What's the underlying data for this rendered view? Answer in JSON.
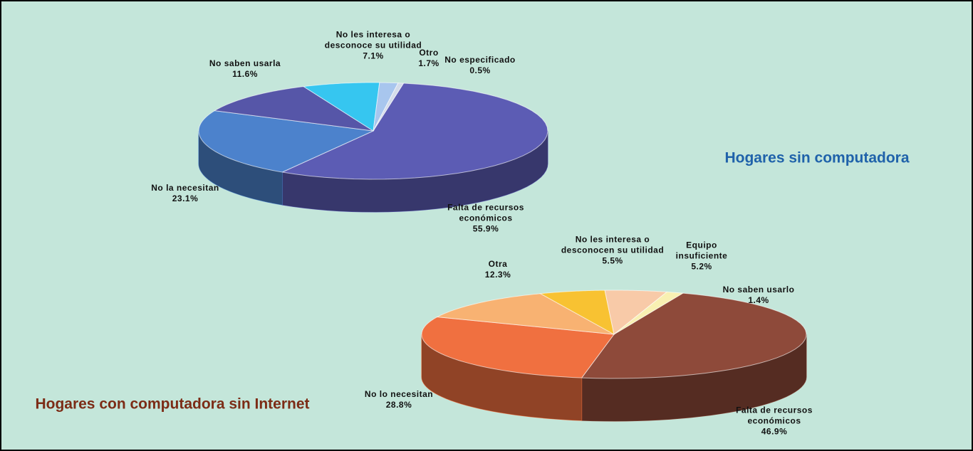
{
  "chart_data": [
    {
      "type": "pie3d",
      "title": "Hogares sin computadora",
      "categories": [
        "Falta de recursos económicos",
        "No la necesitan",
        "No saben usarla",
        "No les interesa o desconoce su utilidad",
        "Otro",
        "No especificado"
      ],
      "values": [
        55.9,
        23.1,
        11.6,
        7.1,
        1.7,
        0.5
      ],
      "value_labels": [
        "55.9%",
        "23.1%",
        "11.6%",
        "7.1%",
        "1.7%",
        "0.5%"
      ],
      "colors": [
        "#5c5cb4",
        "#4c82cc",
        "#5656a8",
        "#36c6f0",
        "#a8c6ee",
        "#d4dcea"
      ]
    },
    {
      "type": "pie3d",
      "title": "Hogares con computadora sin Internet",
      "categories": [
        "Falta de recursos económicos",
        "No lo necesitan",
        "Otra",
        "No les interesa o desconocen su utilidad",
        "Equipo insuficiente",
        "No saben usarlo"
      ],
      "values": [
        46.9,
        28.8,
        12.3,
        5.5,
        5.2,
        1.4
      ],
      "value_labels": [
        "46.9%",
        "28.8%",
        "12.3%",
        "5.5%",
        "5.2%",
        "1.4%"
      ],
      "colors": [
        "#8e4a3a",
        "#f07040",
        "#f8b272",
        "#f8c232",
        "#f8caa8",
        "#f8f0b2"
      ]
    }
  ]
}
